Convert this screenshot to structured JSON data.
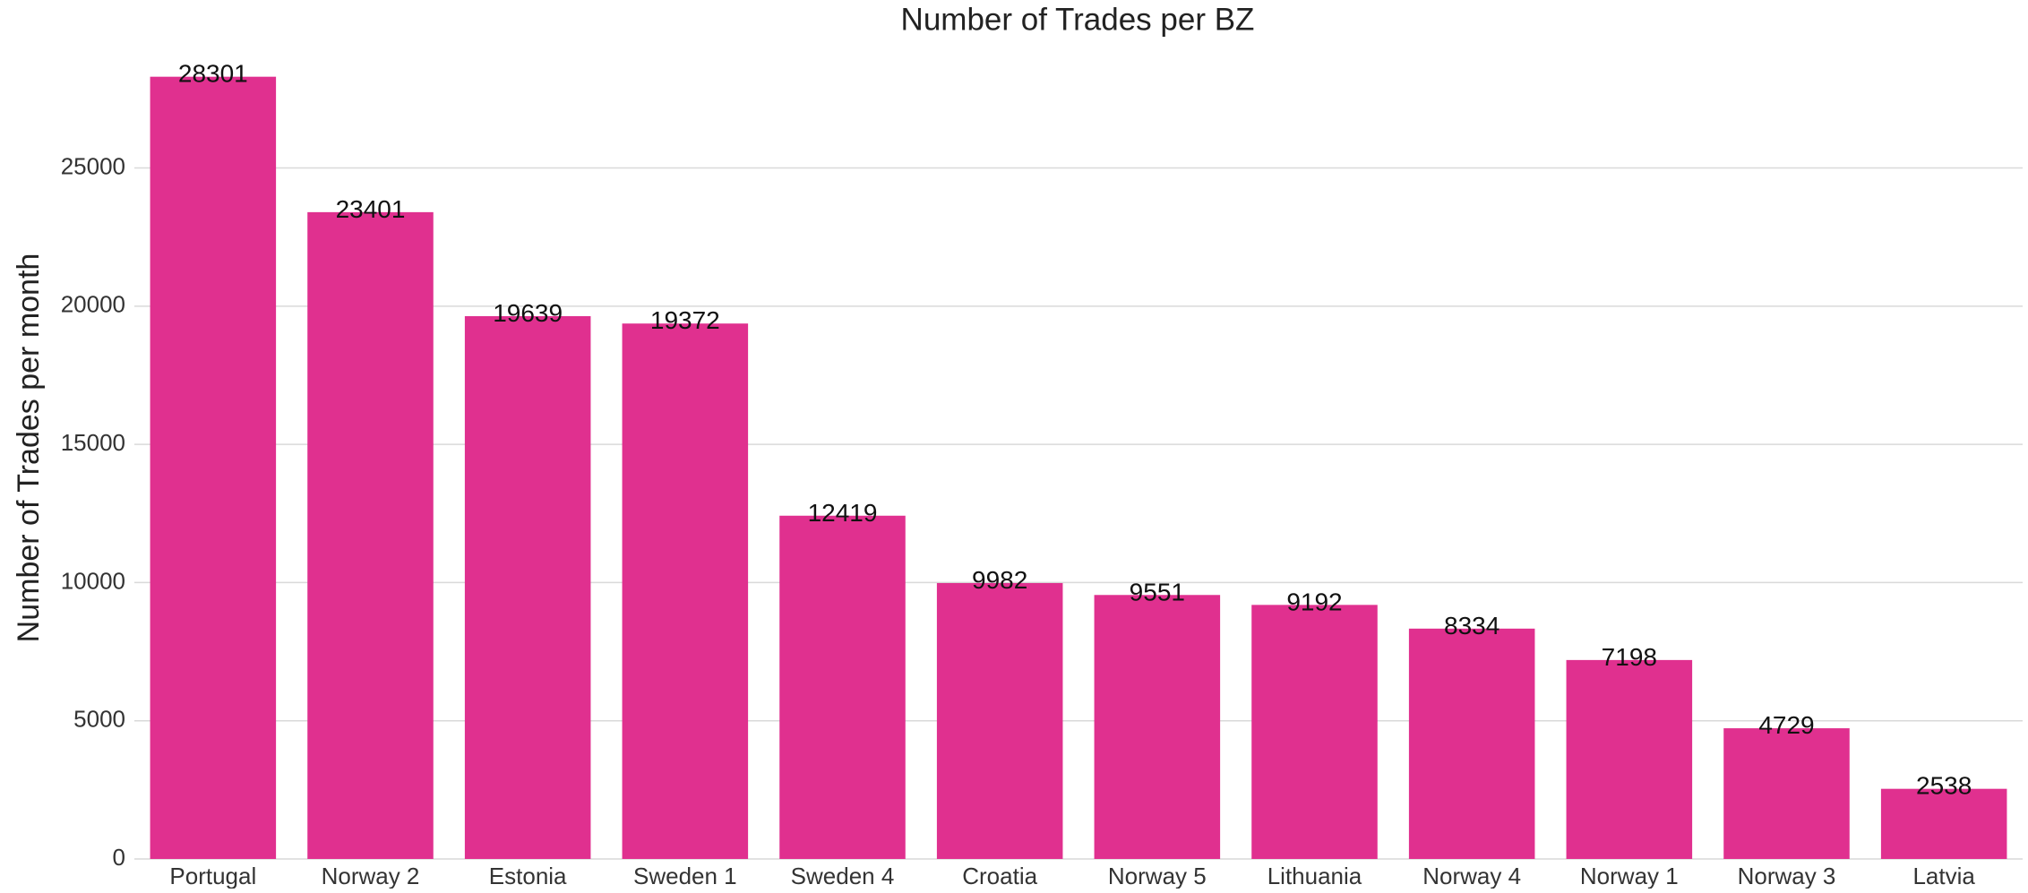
{
  "chart_data": {
    "type": "bar",
    "title": "Number of Trades per BZ",
    "ylabel": "Number of Trades per month",
    "categories": [
      "Portugal",
      "Norway 2",
      "Estonia",
      "Sweden 1",
      "Sweden 4",
      "Croatia",
      "Norway 5",
      "Lithuania",
      "Norway 4",
      "Norway 1",
      "Norway 3",
      "Latvia"
    ],
    "values": [
      28301,
      23401,
      19639,
      19372,
      12419,
      9982,
      9551,
      9192,
      8334,
      7198,
      4729,
      2538
    ],
    "color": "#e0308f",
    "ylim": [
      0,
      29716
    ],
    "yticks": [
      0,
      5000,
      10000,
      15000,
      20000,
      25000
    ],
    "grid": true
  }
}
